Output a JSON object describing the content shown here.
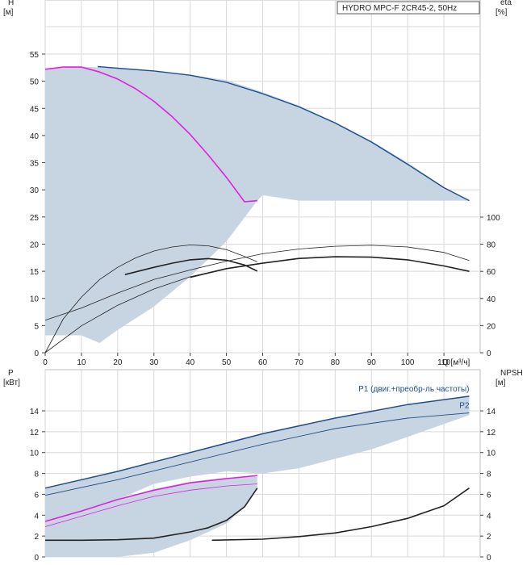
{
  "chart_data": [
    {
      "type": "line",
      "panel": "head-efficiency",
      "title": "HYDRO MPC-F 2CR45-2, 50Hz",
      "ylabel": "H",
      "yunit": "[м]",
      "y2label": "eta",
      "y2unit": "[%]",
      "xlabel": "Q [м³/ч]",
      "xlim": [
        0,
        120
      ],
      "ylim": [
        0,
        60
      ],
      "y2lim": [
        0,
        100
      ],
      "grid": true,
      "xticks": [
        0,
        10,
        20,
        30,
        40,
        50,
        60,
        70,
        80,
        90,
        100,
        110
      ],
      "yticks": [
        0,
        5,
        10,
        15,
        20,
        25,
        30,
        35,
        40,
        45,
        50,
        55
      ],
      "y2ticks": [
        0,
        20,
        40,
        60,
        80,
        100
      ],
      "area": {
        "upper": [
          [
            0,
            52.2
          ],
          [
            10,
            52.7
          ],
          [
            20,
            52.4
          ],
          [
            30,
            51.8
          ],
          [
            40,
            51.2
          ],
          [
            50,
            50.2
          ],
          [
            60,
            48.0
          ],
          [
            70,
            45.5
          ],
          [
            80,
            42.5
          ],
          [
            90,
            39.0
          ],
          [
            100,
            35.0
          ],
          [
            110,
            30.5
          ],
          [
            117,
            28.0
          ]
        ],
        "lower": [
          [
            117,
            28.0
          ],
          [
            100,
            28.0
          ],
          [
            80,
            28.0
          ],
          [
            70,
            28.0
          ],
          [
            60,
            29.0
          ],
          [
            58.5,
            28.0
          ],
          [
            50,
            20.5
          ],
          [
            40,
            14.0
          ],
          [
            30,
            8.5
          ],
          [
            20,
            4.2
          ],
          [
            15,
            1.8
          ],
          [
            10,
            3.2
          ],
          [
            0,
            3.2
          ]
        ]
      },
      "series": [
        {
          "color": "#e020e0",
          "axis": "H",
          "width": 1.6,
          "points": [
            [
              0,
              52.2
            ],
            [
              5,
              52.6
            ],
            [
              10,
              52.6
            ],
            [
              15,
              51.7
            ],
            [
              20,
              50.4
            ],
            [
              25,
              48.6
            ],
            [
              30,
              46.3
            ],
            [
              35,
              43.5
            ],
            [
              40,
              40.2
            ],
            [
              45,
              36.4
            ],
            [
              50,
              32.3
            ],
            [
              55,
              27.8
            ],
            [
              58.5,
              28.0
            ]
          ]
        },
        {
          "color": "#1f4e8c",
          "axis": "H",
          "width": 1.4,
          "points": [
            [
              14.5,
              52.7
            ],
            [
              20,
              52.4
            ],
            [
              30,
              51.9
            ],
            [
              40,
              51.1
            ],
            [
              50,
              49.8
            ],
            [
              60,
              47.7
            ],
            [
              70,
              45.3
            ],
            [
              80,
              42.3
            ],
            [
              90,
              38.8
            ],
            [
              100,
              34.7
            ],
            [
              110,
              30.4
            ],
            [
              117,
              28.0
            ]
          ]
        },
        {
          "color": "#222222",
          "axis": "eta",
          "width": 0.8,
          "points": [
            [
              0,
              0
            ],
            [
              5,
              25
            ],
            [
              10,
              41
            ],
            [
              15,
              54
            ],
            [
              20,
              63
            ],
            [
              25,
              70
            ],
            [
              30,
              75
            ],
            [
              35,
              78
            ],
            [
              40,
              79.5
            ],
            [
              45,
              78.8
            ],
            [
              50,
              76
            ],
            [
              55,
              71
            ],
            [
              58.5,
              67
            ]
          ]
        },
        {
          "color": "#222222",
          "axis": "eta",
          "width": 1.6,
          "points": [
            [
              22,
              57.6
            ],
            [
              30,
              63
            ],
            [
              35,
              66
            ],
            [
              40,
              68.5
            ],
            [
              45,
              69.4
            ],
            [
              50,
              68.2
            ],
            [
              55,
              64.7
            ],
            [
              58.5,
              60.2
            ]
          ]
        },
        {
          "color": "#222222",
          "axis": "eta",
          "width": 0.8,
          "points": [
            [
              0,
              24
            ],
            [
              10,
              33
            ],
            [
              20,
              44
            ],
            [
              30,
              54
            ],
            [
              40,
              61
            ],
            [
              50,
              67.5
            ],
            [
              60,
              73
            ],
            [
              70,
              76.5
            ],
            [
              80,
              78.5
            ],
            [
              90,
              79.2
            ],
            [
              100,
              78
            ],
            [
              110,
              74
            ],
            [
              117,
              68
            ]
          ]
        },
        {
          "color": "#222222",
          "axis": "eta",
          "width": 0.8,
          "points": [
            [
              0,
              0
            ],
            [
              10,
              19.8
            ],
            [
              20,
              35
            ],
            [
              30,
              47
            ],
            [
              40,
              56
            ],
            [
              50,
              62
            ],
            [
              55,
              64
            ]
          ]
        },
        {
          "color": "#222222",
          "axis": "eta",
          "width": 1.6,
          "points": [
            [
              40,
              55.6
            ],
            [
              50,
              62
            ],
            [
              60,
              66
            ],
            [
              70,
              69.5
            ],
            [
              80,
              70.8
            ],
            [
              90,
              70.5
            ],
            [
              100,
              68.5
            ],
            [
              110,
              64
            ],
            [
              117,
              60
            ]
          ]
        }
      ]
    },
    {
      "type": "line",
      "panel": "power-npsh",
      "ylabel": "P",
      "yunit": "[кВт]",
      "y2label": "NPSH",
      "y2unit": "[м]",
      "xlim": [
        0,
        120
      ],
      "ylim": [
        0,
        16
      ],
      "y2lim": [
        0,
        16
      ],
      "grid": true,
      "yticks": [
        0,
        2,
        4,
        6,
        8,
        10,
        12,
        14
      ],
      "y2ticks": [
        0,
        2,
        4,
        6,
        8,
        10,
        12,
        14
      ],
      "area": {
        "upper": [
          [
            0,
            6.6
          ],
          [
            20,
            8.2
          ],
          [
            40,
            10.0
          ],
          [
            60,
            11.8
          ],
          [
            80,
            13.3
          ],
          [
            100,
            14.6
          ],
          [
            117,
            15.4
          ]
        ],
        "lower": [
          [
            117,
            13.6
          ],
          [
            100,
            11.5
          ],
          [
            90,
            10.3
          ],
          [
            70,
            8.5
          ],
          [
            60,
            8.0
          ],
          [
            50,
            8.2
          ],
          [
            40,
            7.7
          ],
          [
            30,
            7.0
          ],
          [
            20,
            5.5
          ],
          [
            12,
            3.5
          ],
          [
            0,
            1.5
          ]
        ]
      },
      "area2": {
        "upper": [
          [
            0,
            3.4
          ],
          [
            10,
            4.4
          ],
          [
            20,
            5.5
          ],
          [
            30,
            6.5
          ],
          [
            40,
            7.2
          ],
          [
            50,
            7.6
          ],
          [
            58.5,
            7.7
          ]
        ],
        "lower": [
          [
            58.5,
            6.7
          ],
          [
            55,
            4.8
          ],
          [
            50,
            3.2
          ],
          [
            40,
            1.6
          ],
          [
            30,
            0.4
          ],
          [
            20,
            0
          ],
          [
            0,
            0
          ]
        ]
      },
      "series": [
        {
          "name": "P1 (двиг.+преобр-ль частоты)",
          "color": "#1f4e8c",
          "axis": "P",
          "width": 1.5,
          "points": [
            [
              0,
              6.6
            ],
            [
              20,
              8.2
            ],
            [
              40,
              10.0
            ],
            [
              60,
              11.8
            ],
            [
              80,
              13.3
            ],
            [
              100,
              14.6
            ],
            [
              117,
              15.4
            ]
          ]
        },
        {
          "name": "P2",
          "color": "#1f4e8c",
          "axis": "P",
          "width": 0.9,
          "points": [
            [
              0,
              5.9
            ],
            [
              20,
              7.4
            ],
            [
              40,
              9.1
            ],
            [
              60,
              10.8
            ],
            [
              80,
              12.3
            ],
            [
              100,
              13.3
            ],
            [
              117,
              13.8
            ]
          ]
        },
        {
          "color": "#e020e0",
          "axis": "P",
          "width": 1.6,
          "points": [
            [
              0,
              3.4
            ],
            [
              10,
              4.4
            ],
            [
              20,
              5.5
            ],
            [
              30,
              6.4
            ],
            [
              40,
              7.1
            ],
            [
              50,
              7.5
            ],
            [
              58.5,
              7.8
            ]
          ]
        },
        {
          "color": "#e020e0",
          "axis": "P",
          "width": 0.8,
          "points": [
            [
              0,
              2.9
            ],
            [
              10,
              3.9
            ],
            [
              20,
              4.9
            ],
            [
              30,
              5.8
            ],
            [
              40,
              6.4
            ],
            [
              50,
              6.8
            ],
            [
              58.5,
              7.0
            ]
          ]
        },
        {
          "color": "#222222",
          "axis": "NPSH",
          "width": 1.6,
          "points": [
            [
              0,
              1.6
            ],
            [
              10,
              1.6
            ],
            [
              20,
              1.65
            ],
            [
              30,
              1.8
            ],
            [
              40,
              2.4
            ],
            [
              45,
              2.8
            ],
            [
              50,
              3.5
            ],
            [
              55,
              4.8
            ],
            [
              58.5,
              6.6
            ]
          ]
        },
        {
          "color": "#222222",
          "axis": "NPSH",
          "width": 1.6,
          "points": [
            [
              46,
              1.6
            ],
            [
              60,
              1.7
            ],
            [
              70,
              1.95
            ],
            [
              80,
              2.3
            ],
            [
              90,
              2.9
            ],
            [
              100,
              3.7
            ],
            [
              110,
              4.9
            ],
            [
              117,
              6.6
            ]
          ]
        }
      ],
      "labels": [
        {
          "text": "P1 (двиг.+преобр-ль частоты)",
          "x": 117,
          "y": 15.4
        },
        {
          "text": "P2",
          "x": 117,
          "y": 13.8
        }
      ]
    }
  ]
}
